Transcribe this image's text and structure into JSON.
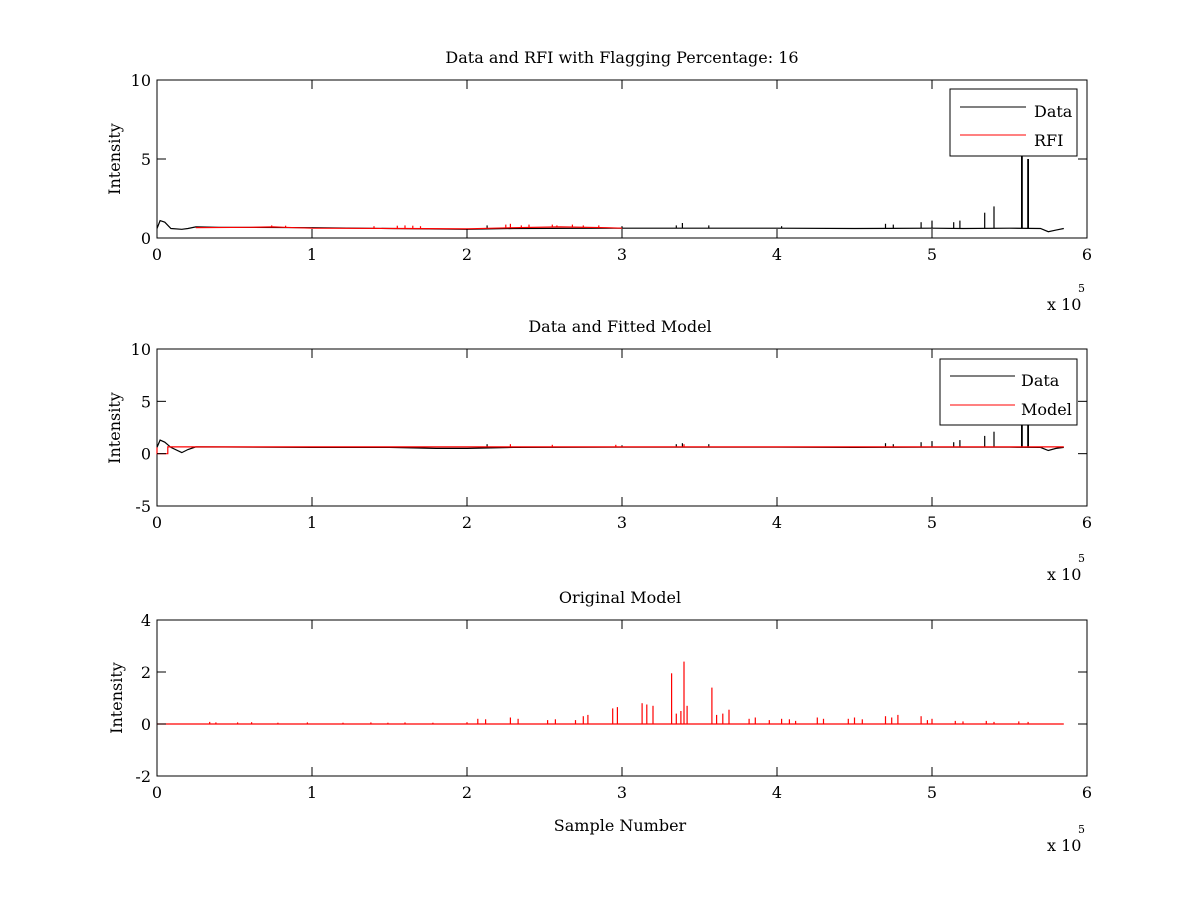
{
  "chart_data": [
    {
      "type": "line",
      "title": "Data and RFI with Flagging Percentage: 16",
      "xlabel": "",
      "ylabel": "Intensity",
      "xlim": [
        0,
        600000
      ],
      "ylim": [
        0,
        10
      ],
      "xticks": [
        0,
        100000,
        200000,
        300000,
        400000,
        500000,
        600000
      ],
      "xtick_labels": [
        "0",
        "1",
        "2",
        "3",
        "4",
        "5",
        "6"
      ],
      "yticks": [
        0,
        5,
        10
      ],
      "ytick_labels": [
        "0",
        "5",
        "10"
      ],
      "x_exponent_base": "x 10",
      "x_exponent_power": "5",
      "grid": false,
      "legend": {
        "position": "top-right",
        "entries": [
          "Data",
          "RFI"
        ]
      },
      "series": [
        {
          "name": "Data",
          "color": "#000000",
          "baseline": [
            [
              0,
              0.6
            ],
            [
              2000,
              1.1
            ],
            [
              5000,
              1.0
            ],
            [
              9000,
              0.6
            ],
            [
              16000,
              0.55
            ],
            [
              20000,
              0.6
            ],
            [
              25000,
              0.7
            ],
            [
              40000,
              0.68
            ],
            [
              100000,
              0.65
            ],
            [
              150000,
              0.6
            ],
            [
              200000,
              0.55
            ],
            [
              230000,
              0.6
            ],
            [
              300000,
              0.62
            ],
            [
              350000,
              0.62
            ],
            [
              400000,
              0.62
            ],
            [
              450000,
              0.6
            ],
            [
              500000,
              0.62
            ],
            [
              520000,
              0.6
            ],
            [
              550000,
              0.62
            ],
            [
              570000,
              0.6
            ],
            [
              575000,
              0.4
            ],
            [
              580000,
              0.5
            ],
            [
              585000,
              0.6
            ]
          ],
          "spikes": [
            [
              213000,
              0.8
            ],
            [
              300000,
              0.75
            ],
            [
              335000,
              0.8
            ],
            [
              339000,
              0.95
            ],
            [
              356000,
              0.8
            ],
            [
              403000,
              0.75
            ],
            [
              470000,
              0.9
            ],
            [
              475000,
              0.85
            ],
            [
              493000,
              1.0
            ],
            [
              500000,
              1.1
            ],
            [
              514000,
              1.0
            ],
            [
              518000,
              1.1
            ],
            [
              534000,
              1.6
            ],
            [
              540000,
              2.0
            ],
            [
              558000,
              5.2
            ],
            [
              562000,
              5.0
            ]
          ]
        },
        {
          "name": "RFI",
          "color": "#ff0000",
          "baseline": [
            [
              25000,
              0.65
            ],
            [
              60000,
              0.68
            ],
            [
              75000,
              0.7
            ],
            [
              82000,
              0.68
            ],
            [
              100000,
              0.62
            ],
            [
              160000,
              0.6
            ],
            [
              200000,
              0.58
            ],
            [
              230000,
              0.65
            ],
            [
              260000,
              0.7
            ],
            [
              290000,
              0.65
            ],
            [
              300000,
              0.62
            ]
          ],
          "spikes": [
            [
              74000,
              0.8
            ],
            [
              83000,
              0.78
            ],
            [
              140000,
              0.75
            ],
            [
              155000,
              0.78
            ],
            [
              160000,
              0.8
            ],
            [
              165000,
              0.78
            ],
            [
              170000,
              0.75
            ],
            [
              225000,
              0.85
            ],
            [
              228000,
              0.9
            ],
            [
              235000,
              0.8
            ],
            [
              240000,
              0.85
            ],
            [
              255000,
              0.85
            ],
            [
              258000,
              0.8
            ],
            [
              268000,
              0.85
            ],
            [
              275000,
              0.8
            ],
            [
              285000,
              0.8
            ]
          ]
        }
      ]
    },
    {
      "type": "line",
      "title": "Data and Fitted Model",
      "xlabel": "",
      "ylabel": "Intensity",
      "xlim": [
        0,
        600000
      ],
      "ylim": [
        -5,
        10
      ],
      "xticks": [
        0,
        100000,
        200000,
        300000,
        400000,
        500000,
        600000
      ],
      "xtick_labels": [
        "0",
        "1",
        "2",
        "3",
        "4",
        "5",
        "6"
      ],
      "yticks": [
        -5,
        0,
        5,
        10
      ],
      "ytick_labels": [
        "-5",
        "0",
        "5",
        "10"
      ],
      "x_exponent_base": "x 10",
      "x_exponent_power": "5",
      "grid": false,
      "legend": {
        "position": "top-right",
        "entries": [
          "Data",
          "Model"
        ]
      },
      "series": [
        {
          "name": "Data",
          "color": "#000000",
          "baseline": [
            [
              0,
              0.6
            ],
            [
              2000,
              1.3
            ],
            [
              5000,
              1.1
            ],
            [
              9000,
              0.6
            ],
            [
              16000,
              0.1
            ],
            [
              20000,
              0.4
            ],
            [
              25000,
              0.65
            ],
            [
              100000,
              0.6
            ],
            [
              150000,
              0.6
            ],
            [
              180000,
              0.5
            ],
            [
              200000,
              0.5
            ],
            [
              230000,
              0.6
            ],
            [
              300000,
              0.62
            ],
            [
              400000,
              0.62
            ],
            [
              450000,
              0.6
            ],
            [
              500000,
              0.62
            ],
            [
              550000,
              0.62
            ],
            [
              570000,
              0.6
            ],
            [
              575000,
              0.3
            ],
            [
              580000,
              0.5
            ],
            [
              585000,
              0.6
            ]
          ],
          "spikes": [
            [
              213000,
              0.9
            ],
            [
              300000,
              0.8
            ],
            [
              335000,
              0.9
            ],
            [
              339000,
              1.0
            ],
            [
              356000,
              0.9
            ],
            [
              470000,
              1.0
            ],
            [
              475000,
              0.9
            ],
            [
              493000,
              1.1
            ],
            [
              500000,
              1.2
            ],
            [
              514000,
              1.1
            ],
            [
              518000,
              1.3
            ],
            [
              534000,
              1.7
            ],
            [
              540000,
              2.1
            ],
            [
              558000,
              5.2
            ],
            [
              562000,
              5.0
            ]
          ]
        },
        {
          "name": "Model",
          "color": "#ff0000",
          "baseline": [
            [
              0,
              0.6
            ],
            [
              0,
              0.0
            ],
            [
              7000,
              0.0
            ],
            [
              7000,
              0.65
            ],
            [
              585000,
              0.65
            ]
          ],
          "spikes": [
            [
              228000,
              0.9
            ],
            [
              255000,
              0.85
            ],
            [
              296000,
              0.85
            ],
            [
              340000,
              0.9
            ]
          ]
        }
      ]
    },
    {
      "type": "line",
      "title": "Original Model",
      "xlabel": "Sample Number",
      "ylabel": "Intensity",
      "xlim": [
        0,
        600000
      ],
      "ylim": [
        -2,
        4
      ],
      "xticks": [
        0,
        100000,
        200000,
        300000,
        400000,
        500000,
        600000
      ],
      "xtick_labels": [
        "0",
        "1",
        "2",
        "3",
        "4",
        "5",
        "6"
      ],
      "yticks": [
        -2,
        0,
        2,
        4
      ],
      "ytick_labels": [
        "-2",
        "0",
        "2",
        "4"
      ],
      "x_exponent_base": "x 10",
      "x_exponent_power": "5",
      "grid": false,
      "series": [
        {
          "color": "#ff0000",
          "baseline": [
            [
              0,
              0
            ],
            [
              585000,
              0
            ]
          ],
          "spikes": [
            [
              34000,
              0.08
            ],
            [
              38000,
              0.06
            ],
            [
              52000,
              0.06
            ],
            [
              61000,
              0.07
            ],
            [
              78000,
              0.05
            ],
            [
              97000,
              0.06
            ],
            [
              120000,
              0.05
            ],
            [
              138000,
              0.06
            ],
            [
              149000,
              0.05
            ],
            [
              160000,
              0.06
            ],
            [
              178000,
              0.05
            ],
            [
              200000,
              0.07
            ],
            [
              207000,
              0.2
            ],
            [
              212000,
              0.18
            ],
            [
              228000,
              0.25
            ],
            [
              233000,
              0.2
            ],
            [
              252000,
              0.15
            ],
            [
              257000,
              0.18
            ],
            [
              270000,
              0.15
            ],
            [
              275000,
              0.3
            ],
            [
              278000,
              0.35
            ],
            [
              294000,
              0.6
            ],
            [
              297000,
              0.65
            ],
            [
              313000,
              0.8
            ],
            [
              316000,
              0.75
            ],
            [
              320000,
              0.7
            ],
            [
              332000,
              1.95
            ],
            [
              335000,
              0.4
            ],
            [
              338000,
              0.5
            ],
            [
              340000,
              2.4
            ],
            [
              342000,
              0.7
            ],
            [
              358000,
              1.4
            ],
            [
              361000,
              0.35
            ],
            [
              365000,
              0.4
            ],
            [
              369000,
              0.55
            ],
            [
              382000,
              0.2
            ],
            [
              386000,
              0.25
            ],
            [
              395000,
              0.15
            ],
            [
              403000,
              0.2
            ],
            [
              408000,
              0.18
            ],
            [
              412000,
              0.12
            ],
            [
              426000,
              0.25
            ],
            [
              430000,
              0.2
            ],
            [
              446000,
              0.2
            ],
            [
              450000,
              0.25
            ],
            [
              455000,
              0.18
            ],
            [
              470000,
              0.3
            ],
            [
              474000,
              0.25
            ],
            [
              478000,
              0.35
            ],
            [
              493000,
              0.3
            ],
            [
              497000,
              0.15
            ],
            [
              500000,
              0.2
            ],
            [
              515000,
              0.12
            ],
            [
              520000,
              0.1
            ],
            [
              535000,
              0.12
            ],
            [
              540000,
              0.08
            ],
            [
              556000,
              0.1
            ],
            [
              562000,
              0.08
            ]
          ]
        }
      ]
    }
  ]
}
